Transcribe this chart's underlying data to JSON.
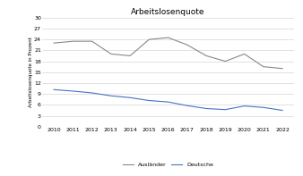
{
  "title": "Arbeitslosenquote",
  "ylabel": "Arbeitslosenquote in Prozent",
  "years": [
    2010,
    2011,
    2012,
    2013,
    2014,
    2015,
    2016,
    2017,
    2018,
    2019,
    2020,
    2021,
    2022
  ],
  "auslaender": [
    23.0,
    23.5,
    23.5,
    20.0,
    19.5,
    24.0,
    24.5,
    22.5,
    19.5,
    18.0,
    20.0,
    16.5,
    16.0
  ],
  "deutsche": [
    10.2,
    9.8,
    9.3,
    8.5,
    8.0,
    7.2,
    6.8,
    5.8,
    5.0,
    4.7,
    5.7,
    5.3,
    4.5
  ],
  "auslaender_color": "#888888",
  "deutsche_color": "#4472C4",
  "ylim": [
    0,
    30
  ],
  "yticks": [
    0,
    3,
    6,
    9,
    12,
    15,
    18,
    21,
    24,
    27,
    30
  ],
  "legend_labels": [
    "Ausländer",
    "Deutsche"
  ],
  "background_color": "#ffffff",
  "grid_color": "#cccccc",
  "title_fontsize": 6.5,
  "label_fontsize": 4.0,
  "tick_fontsize": 4.5,
  "legend_fontsize": 4.5,
  "line_width": 0.8
}
